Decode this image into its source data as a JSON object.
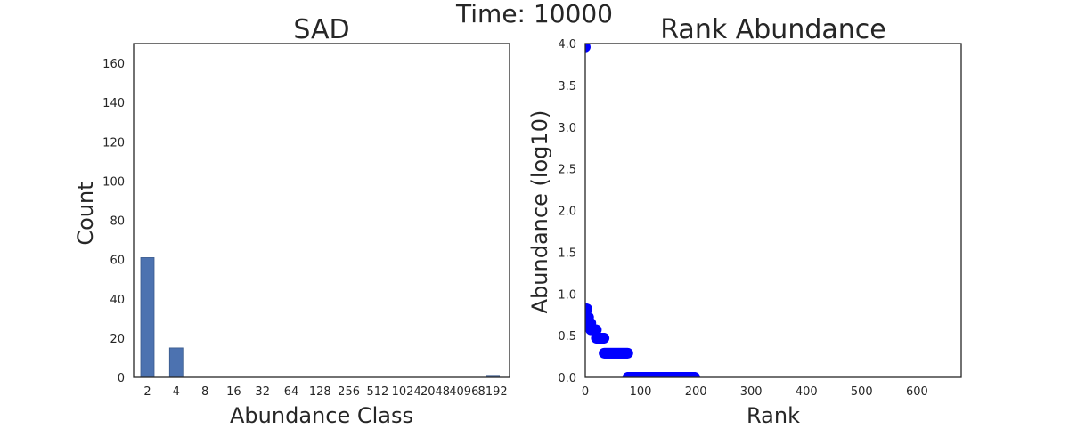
{
  "suptitle": "Time: 10000",
  "chart_data": [
    {
      "type": "bar",
      "title": "SAD",
      "xlabel": "Abundance Class",
      "ylabel": "Count",
      "categories": [
        "2",
        "4",
        "8",
        "16",
        "32",
        "64",
        "128",
        "256",
        "512",
        "1024",
        "2048",
        "4096",
        "8192"
      ],
      "values": [
        61,
        15,
        0,
        0,
        0,
        0,
        0,
        0,
        0,
        0,
        0,
        0,
        1
      ],
      "ylim": [
        0,
        170
      ],
      "yticks": [
        0,
        20,
        40,
        60,
        80,
        100,
        120,
        140,
        160
      ],
      "color": "#4c72b0",
      "grid": false
    },
    {
      "type": "scatter",
      "title": "Rank Abundance",
      "xlabel": "Rank",
      "ylabel": "Abundance (log10)",
      "xlim": [
        0,
        680
      ],
      "ylim": [
        0,
        4.0
      ],
      "xticks": [
        0,
        100,
        200,
        300,
        400,
        500,
        600
      ],
      "yticks": [
        0.0,
        0.5,
        1.0,
        1.5,
        2.0,
        2.5,
        3.0,
        3.5,
        4.0
      ],
      "color": "#0000ff",
      "grid": false,
      "groups": [
        {
          "y": 3.96,
          "rank_from": 0,
          "rank_to": 0
        },
        {
          "y": 0.82,
          "rank_from": 0,
          "rank_to": 3
        },
        {
          "y": 0.72,
          "rank_from": 3,
          "rank_to": 6
        },
        {
          "y": 0.65,
          "rank_from": 6,
          "rank_to": 10
        },
        {
          "y": 0.57,
          "rank_from": 10,
          "rank_to": 20
        },
        {
          "y": 0.47,
          "rank_from": 20,
          "rank_to": 34
        },
        {
          "y": 0.29,
          "rank_from": 34,
          "rank_to": 77
        },
        {
          "y": 0.0,
          "rank_from": 77,
          "rank_to": 198
        }
      ]
    }
  ]
}
